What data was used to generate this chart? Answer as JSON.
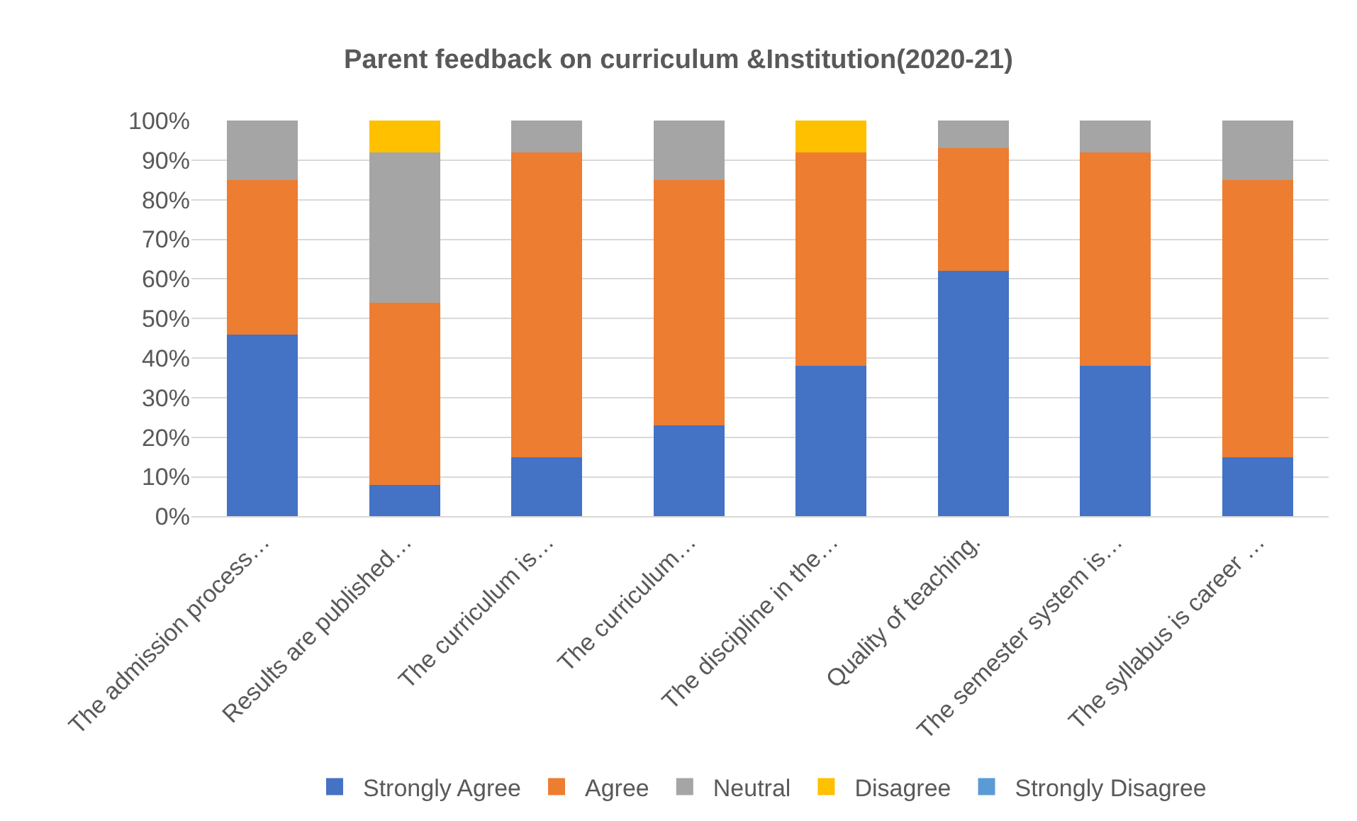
{
  "chart_data": {
    "type": "bar",
    "stacked": true,
    "title": "Parent feedback on curriculum &Institution(2020-21)",
    "categories": [
      "The admission process…",
      "Results are published…",
      "The curriculum is…",
      "The curriculum…",
      "The discipline in the…",
      "Quality of teaching.",
      "The semester system is…",
      "The syllabus is career …"
    ],
    "series": [
      {
        "name": "Strongly Agree",
        "color": "#4472c4",
        "values": [
          46,
          8,
          15,
          23,
          38,
          62,
          38,
          15
        ]
      },
      {
        "name": "Agree",
        "color": "#ed7d31",
        "values": [
          39,
          46,
          77,
          62,
          54,
          31,
          54,
          70
        ]
      },
      {
        "name": "Neutral",
        "color": "#a5a5a5",
        "values": [
          15,
          38,
          8,
          15,
          0,
          7,
          8,
          15
        ]
      },
      {
        "name": "Disagree",
        "color": "#ffc000",
        "values": [
          0,
          8,
          0,
          0,
          8,
          0,
          0,
          0
        ]
      },
      {
        "name": "Strongly Disagree",
        "color": "#5b9bd5",
        "values": [
          0,
          0,
          0,
          0,
          0,
          0,
          0,
          0
        ]
      }
    ],
    "ylim": [
      0,
      100
    ],
    "yticks": [
      {
        "value": 0,
        "label": "0%"
      },
      {
        "value": 10,
        "label": "10%"
      },
      {
        "value": 20,
        "label": "20%"
      },
      {
        "value": 30,
        "label": "30%"
      },
      {
        "value": 40,
        "label": "40%"
      },
      {
        "value": 50,
        "label": "50%"
      },
      {
        "value": 60,
        "label": "60%"
      },
      {
        "value": 70,
        "label": "70%"
      },
      {
        "value": 80,
        "label": "80%"
      },
      {
        "value": 90,
        "label": "90%"
      },
      {
        "value": 100,
        "label": "100%"
      }
    ],
    "grid": "y",
    "legend": "bottom"
  }
}
